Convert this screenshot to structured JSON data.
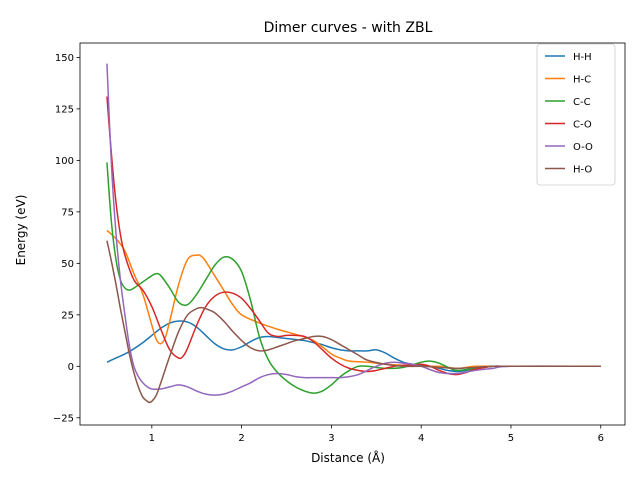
{
  "chart_data": {
    "type": "line",
    "title": "Dimer curves - with ZBL",
    "xlabel": "Distance (Å)",
    "ylabel": "Energy (eV)",
    "xlim": [
      0.2,
      6.27
    ],
    "ylim": [
      -28.5,
      157
    ],
    "xticks": [
      1,
      2,
      3,
      4,
      5,
      6
    ],
    "xtick_labels": [
      "1",
      "2",
      "3",
      "4",
      "5",
      "6"
    ],
    "yticks": [
      -25,
      0,
      25,
      50,
      75,
      100,
      125,
      150
    ],
    "ytick_labels": [
      "−25",
      "0",
      "25",
      "50",
      "75",
      "100",
      "125",
      "150"
    ],
    "grid": false,
    "legend": "top-right",
    "series": [
      {
        "name": "H-H",
        "color": "#1f77b4",
        "x": [
          0.5,
          0.6,
          0.7,
          0.8,
          0.9,
          1.0,
          1.1,
          1.2,
          1.3,
          1.4,
          1.5,
          1.6,
          1.7,
          1.8,
          1.9,
          2.0,
          2.1,
          2.2,
          2.3,
          2.4,
          2.5,
          2.6,
          2.7,
          2.8,
          2.9,
          3.0,
          3.1,
          3.2,
          3.3,
          3.4,
          3.5,
          3.6,
          3.7,
          3.8,
          3.9,
          4.0,
          4.1,
          4.2,
          4.3,
          4.4,
          4.5,
          4.6,
          4.7,
          4.8,
          5.0,
          5.5,
          6.0
        ],
        "y": [
          2,
          4,
          6,
          8.5,
          11.5,
          15,
          18.5,
          21,
          22,
          21.5,
          19,
          15,
          11,
          8.5,
          8,
          9.5,
          12,
          14,
          14.5,
          14,
          13.5,
          13,
          12.5,
          11.5,
          10.5,
          9,
          8,
          7.5,
          7.5,
          7.5,
          8,
          6.5,
          4,
          2,
          1,
          0.5,
          0,
          -1,
          -2,
          -2.5,
          -2,
          -1,
          -0.5,
          0,
          0,
          0,
          0
        ]
      },
      {
        "name": "H-C",
        "color": "#ff7f0e",
        "x": [
          0.5,
          0.6,
          0.7,
          0.8,
          0.9,
          1.0,
          1.05,
          1.1,
          1.15,
          1.2,
          1.3,
          1.4,
          1.5,
          1.55,
          1.6,
          1.7,
          1.8,
          1.9,
          2.0,
          2.2,
          2.4,
          2.6,
          2.8,
          3.0,
          3.1,
          3.2,
          3.4,
          3.6,
          3.8,
          4.0,
          4.2,
          4.4,
          4.5,
          4.6,
          4.8,
          5.0,
          6.0
        ],
        "y": [
          66,
          62,
          56,
          45,
          35,
          20,
          13,
          11,
          14,
          22,
          40,
          52,
          54,
          53.5,
          51,
          44,
          37,
          30,
          25,
          21,
          18,
          15.5,
          12.5,
          6,
          4,
          2.5,
          2,
          1,
          0.5,
          0,
          0,
          -1,
          -0.5,
          0,
          0,
          0,
          0
        ]
      },
      {
        "name": "C-C",
        "color": "#2ca02c",
        "x": [
          0.5,
          0.55,
          0.6,
          0.65,
          0.7,
          0.75,
          0.8,
          0.9,
          1.0,
          1.05,
          1.1,
          1.2,
          1.3,
          1.4,
          1.5,
          1.6,
          1.7,
          1.8,
          1.9,
          2.0,
          2.1,
          2.2,
          2.3,
          2.4,
          2.5,
          2.6,
          2.7,
          2.8,
          2.9,
          3.0,
          3.1,
          3.2,
          3.3,
          3.4,
          3.6,
          3.8,
          4.0,
          4.1,
          4.2,
          4.3,
          4.4,
          4.6,
          4.8,
          5.0,
          6.0
        ],
        "y": [
          99,
          70,
          52,
          42,
          38,
          37,
          38,
          41,
          44,
          45,
          44,
          38,
          31,
          30,
          35,
          42,
          49,
          53,
          52,
          46,
          32,
          14,
          3,
          -3,
          -7,
          -10,
          -12,
          -13,
          -12,
          -9,
          -5,
          -2,
          0,
          0,
          -1,
          -0.5,
          2,
          2.5,
          1.5,
          -0.5,
          -2,
          -1,
          0,
          0,
          0
        ]
      },
      {
        "name": "C-O",
        "color": "#d62728",
        "x": [
          0.5,
          0.55,
          0.6,
          0.65,
          0.7,
          0.8,
          0.9,
          1.0,
          1.1,
          1.2,
          1.3,
          1.35,
          1.4,
          1.5,
          1.6,
          1.7,
          1.8,
          1.9,
          2.0,
          2.1,
          2.2,
          2.3,
          2.4,
          2.5,
          2.6,
          2.7,
          2.8,
          2.9,
          3.0,
          3.1,
          3.2,
          3.3,
          3.4,
          3.5,
          3.6,
          3.7,
          3.8,
          3.9,
          4.0,
          4.1,
          4.2,
          4.3,
          4.4,
          4.5,
          4.6,
          4.8,
          5.0,
          6.0
        ],
        "y": [
          131,
          103,
          80,
          64,
          54,
          42,
          37,
          29,
          18,
          8,
          4,
          5,
          9,
          20,
          29,
          34,
          36,
          35.5,
          33,
          28,
          22,
          16,
          14.5,
          15,
          15,
          14.5,
          12,
          8,
          4,
          1,
          -1,
          -2,
          -2.5,
          -2,
          -1,
          0,
          0.5,
          0.5,
          1,
          0,
          -2,
          -3.5,
          -4,
          -3,
          -1.5,
          0,
          0,
          0
        ]
      },
      {
        "name": "O-O",
        "color": "#9467bd",
        "x": [
          0.5,
          0.55,
          0.6,
          0.65,
          0.7,
          0.75,
          0.8,
          0.85,
          0.9,
          0.95,
          1.0,
          1.1,
          1.2,
          1.3,
          1.4,
          1.5,
          1.6,
          1.7,
          1.8,
          1.9,
          2.0,
          2.1,
          2.2,
          2.3,
          2.4,
          2.5,
          2.6,
          2.7,
          2.8,
          2.9,
          3.0,
          3.1,
          3.2,
          3.3,
          3.4,
          3.5,
          3.6,
          3.7,
          3.8,
          3.9,
          4.0,
          4.2,
          4.4,
          4.6,
          4.8,
          5.0,
          6.0
        ],
        "y": [
          147,
          98,
          65,
          42,
          25,
          10,
          0,
          -5,
          -8,
          -10,
          -11,
          -11,
          -10,
          -9,
          -10,
          -12,
          -13.5,
          -14,
          -13.5,
          -12,
          -10,
          -8,
          -5.5,
          -4,
          -3.5,
          -4,
          -5,
          -5.5,
          -5.5,
          -5.5,
          -5.5,
          -5.5,
          -5,
          -4,
          -2,
          0,
          1.5,
          2,
          1.5,
          1,
          0,
          -3,
          -3.5,
          -2,
          -1,
          0,
          0
        ]
      },
      {
        "name": "H-O",
        "color": "#8c564b",
        "x": [
          0.5,
          0.55,
          0.6,
          0.65,
          0.7,
          0.75,
          0.8,
          0.85,
          0.9,
          0.95,
          0.97,
          1.0,
          1.05,
          1.1,
          1.2,
          1.3,
          1.4,
          1.5,
          1.55,
          1.6,
          1.7,
          1.8,
          1.9,
          2.0,
          2.1,
          2.2,
          2.3,
          2.4,
          2.5,
          2.6,
          2.7,
          2.8,
          2.9,
          3.0,
          3.1,
          3.2,
          3.3,
          3.4,
          3.6,
          3.8,
          4.0,
          4.2,
          4.4,
          4.6,
          4.8,
          5.0,
          6.0
        ],
        "y": [
          61,
          51,
          40,
          28,
          17,
          6,
          -3,
          -10,
          -15,
          -17,
          -17.5,
          -17,
          -14,
          -8,
          5,
          17,
          25,
          28,
          28.5,
          28,
          26,
          22,
          17,
          12.5,
          9,
          7.5,
          8,
          9.5,
          11,
          12.5,
          13.5,
          14.5,
          14.5,
          13,
          10.5,
          8,
          5.5,
          3,
          1,
          0,
          0,
          -0.5,
          -1,
          -0.5,
          0,
          0,
          0
        ]
      }
    ]
  }
}
